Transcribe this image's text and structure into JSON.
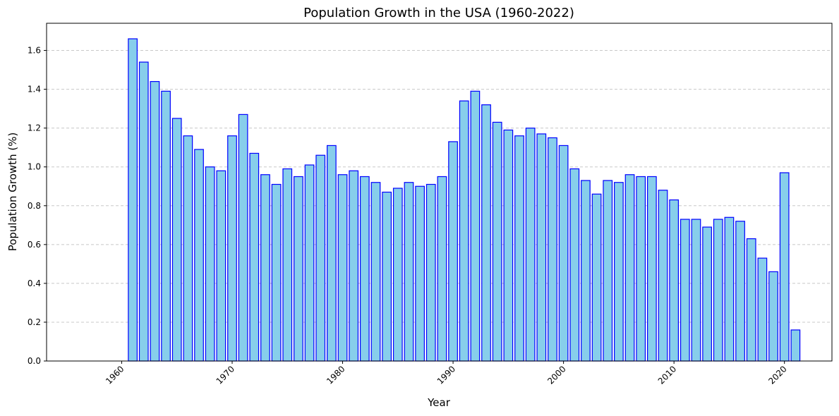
{
  "chart_data": {
    "type": "bar",
    "title": "Population Growth in the USA (1960-2022)",
    "xlabel": "Year",
    "ylabel": "Population Growth (%)",
    "xlim": [
      1953.2,
      2024.3
    ],
    "ylim": [
      0,
      1.74
    ],
    "x_ticks": [
      1960,
      1970,
      1980,
      1990,
      2000,
      2010,
      2020
    ],
    "y_ticks": [
      0.0,
      0.2,
      0.4,
      0.6,
      0.8,
      1.0,
      1.2,
      1.4,
      1.6
    ],
    "y_tick_labels": [
      "0.0",
      "0.2",
      "0.4",
      "0.6",
      "0.8",
      "1.0",
      "1.2",
      "1.4",
      "1.6"
    ],
    "grid": "y-dashed",
    "bar_color": "#87ceeb",
    "edge_color": "#0000ff",
    "x": [
      1961,
      1962,
      1963,
      1964,
      1965,
      1966,
      1967,
      1968,
      1969,
      1970,
      1971,
      1972,
      1973,
      1974,
      1975,
      1976,
      1977,
      1978,
      1979,
      1980,
      1981,
      1982,
      1983,
      1984,
      1985,
      1986,
      1987,
      1988,
      1989,
      1990,
      1991,
      1992,
      1993,
      1994,
      1995,
      1996,
      1997,
      1998,
      1999,
      2000,
      2001,
      2002,
      2003,
      2004,
      2005,
      2006,
      2007,
      2008,
      2009,
      2010,
      2011,
      2012,
      2013,
      2014,
      2015,
      2016,
      2017,
      2018,
      2019,
      2020,
      2021
    ],
    "values": [
      1.66,
      1.54,
      1.44,
      1.39,
      1.25,
      1.16,
      1.09,
      1.0,
      0.98,
      1.16,
      1.27,
      1.07,
      0.96,
      0.91,
      0.99,
      0.95,
      1.01,
      1.06,
      1.11,
      0.96,
      0.98,
      0.95,
      0.92,
      0.87,
      0.89,
      0.92,
      0.9,
      0.91,
      0.95,
      1.13,
      1.34,
      1.39,
      1.32,
      1.23,
      1.19,
      1.16,
      1.2,
      1.17,
      1.15,
      1.11,
      0.99,
      0.93,
      0.86,
      0.93,
      0.92,
      0.96,
      0.95,
      0.95,
      0.88,
      0.83,
      0.73,
      0.73,
      0.69,
      0.73,
      0.74,
      0.72,
      0.63,
      0.53,
      0.46,
      0.97,
      0.16
    ]
  }
}
